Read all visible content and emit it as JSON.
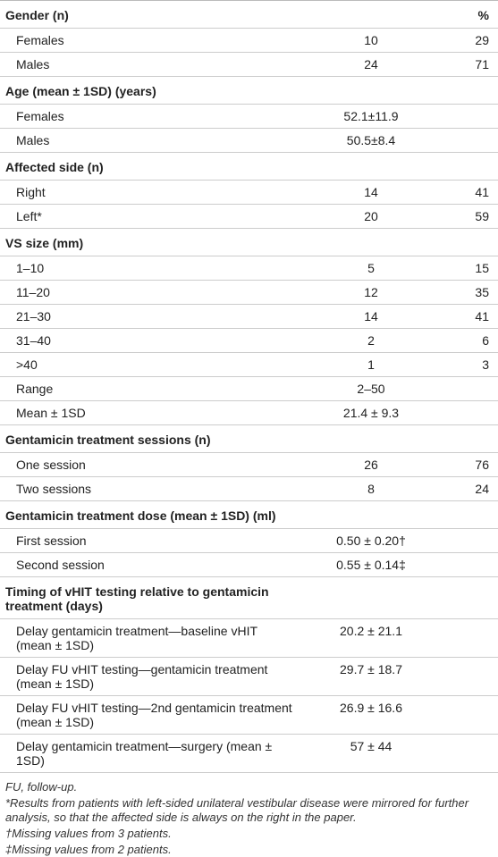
{
  "pct_header": "%",
  "sections": [
    {
      "title": "Gender (n)",
      "rows": [
        {
          "label": "Females",
          "n": 10,
          "pct": 29
        },
        {
          "label": "Males",
          "n": 24,
          "pct": 71
        }
      ]
    },
    {
      "title": "Age (mean ± 1SD) (years)",
      "rows": [
        {
          "label": "Females",
          "n": "52.1±11.9"
        },
        {
          "label": "Males",
          "n": "50.5±8.4"
        }
      ]
    },
    {
      "title": "Affected side (n)",
      "rows": [
        {
          "label": "Right",
          "n": 14,
          "pct": 41
        },
        {
          "label": "Left*",
          "n": 20,
          "pct": 59
        }
      ]
    },
    {
      "title": "VS size (mm)",
      "rows": [
        {
          "label": "1–10",
          "n": 5,
          "pct": 15
        },
        {
          "label": "11–20",
          "n": 12,
          "pct": 35
        },
        {
          "label": "21–30",
          "n": 14,
          "pct": 41
        },
        {
          "label": "31–40",
          "n": 2,
          "pct": 6
        },
        {
          "label": ">40",
          "n": 1,
          "pct": 3
        },
        {
          "label": "Range",
          "n": "2–50"
        },
        {
          "label": "Mean ± 1SD",
          "n": "21.4 ± 9.3"
        }
      ]
    },
    {
      "title": "Gentamicin treatment sessions (n)",
      "rows": [
        {
          "label": "One session",
          "n": 26,
          "pct": 76
        },
        {
          "label": "Two sessions",
          "n": 8,
          "pct": 24
        }
      ]
    },
    {
      "title": "Gentamicin treatment dose (mean ± 1SD) (ml)",
      "rows": [
        {
          "label": "First session",
          "n": "0.50 ± 0.20†"
        },
        {
          "label": "Second session",
          "n": "0.55 ± 0.14‡"
        }
      ]
    },
    {
      "title": "Timing of vHIT testing relative to gentamicin treatment (days)",
      "rows": [
        {
          "label": "Delay gentamicin treatment—baseline vHIT (mean ± 1SD)",
          "n": "20.2 ± 21.1"
        },
        {
          "label": "Delay FU vHIT testing—gentamicin treatment (mean ± 1SD)",
          "n": "29.7 ± 18.7"
        },
        {
          "label": "Delay FU vHIT testing—2nd gentamicin treatment (mean ± 1SD)",
          "n": "26.9 ± 16.6"
        },
        {
          "label": "Delay gentamicin treatment—surgery (mean ± 1SD)",
          "n": "57 ± 44"
        }
      ]
    }
  ],
  "footnotes": [
    "FU, follow-up.",
    "*Results from patients with left-sided unilateral vestibular disease were mirrored for further analysis, so that the affected side is always on the right in the paper.",
    "†Missing values from 3 patients.",
    "‡Missing values from 2 patients."
  ]
}
